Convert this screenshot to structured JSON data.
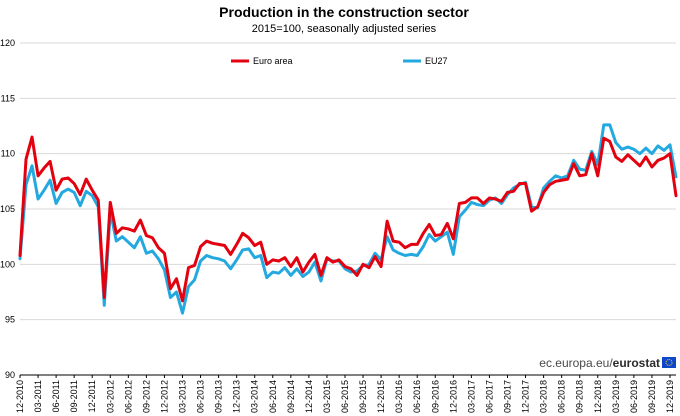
{
  "chart_data": {
    "type": "line",
    "title": "Production in the construction sector",
    "subtitle": "2015=100, seasonally adjusted series",
    "source": {
      "prefix": "ec.europa.eu/",
      "brand": "eurostat"
    },
    "ylim": [
      90,
      120
    ],
    "yticks": [
      90,
      95,
      100,
      105,
      110,
      115,
      120
    ],
    "xlabels": [
      "12-2010",
      "03-2011",
      "06-2011",
      "09-2011",
      "12-2011",
      "03-2012",
      "06-2012",
      "09-2012",
      "12-2012",
      "03-2013",
      "06-2013",
      "09-2013",
      "12-2013",
      "03-2014",
      "06-2014",
      "09-2014",
      "12-2014",
      "03-2015",
      "06-2015",
      "09-2015",
      "12-2015",
      "03-2016",
      "06-2016",
      "09-2016",
      "12-2016",
      "03-2017",
      "06-2017",
      "09-2017",
      "12-2017",
      "03-2018",
      "06-2018",
      "09-2018",
      "12-2018",
      "03-2019",
      "06-2019",
      "09-2019",
      "12-2019"
    ],
    "grid": true,
    "legend": "top",
    "series": [
      {
        "name": "Euro area",
        "color": "#e3000f",
        "values": [
          100.8,
          109.5,
          111.5,
          108.0,
          108.7,
          109.3,
          106.7,
          107.7,
          107.8,
          107.3,
          106.3,
          107.7,
          106.7,
          105.8,
          97.0,
          105.6,
          102.8,
          103.3,
          103.2,
          103.0,
          104.0,
          102.6,
          102.4,
          101.5,
          101.0,
          97.8,
          98.7,
          96.7,
          99.7,
          99.9,
          101.6,
          102.1,
          101.9,
          101.8,
          101.7,
          100.9,
          101.8,
          102.8,
          102.4,
          101.7,
          102.0,
          100.0,
          100.4,
          100.3,
          100.6,
          99.8,
          100.6,
          99.3,
          100.2,
          100.9,
          99.0,
          100.6,
          100.2,
          100.4,
          99.8,
          99.6,
          99.0,
          100.0,
          99.7,
          100.7,
          99.8,
          103.9,
          102.1,
          102.0,
          101.5,
          101.8,
          101.8,
          102.8,
          103.6,
          102.6,
          102.7,
          103.7,
          102.3,
          105.5,
          105.6,
          106.0,
          106.0,
          105.5,
          106.0,
          105.9,
          105.7,
          106.5,
          106.6,
          107.3,
          107.3,
          104.8,
          105.2,
          106.5,
          107.2,
          107.5,
          107.6,
          107.7,
          109.1,
          108.0,
          108.1,
          110.0,
          108.0,
          111.4,
          111.1,
          109.7,
          109.3,
          109.9,
          109.4,
          108.9,
          109.7,
          108.8,
          109.4,
          109.6,
          110.0,
          106.2
        ]
      },
      {
        "name": "EU27",
        "color": "#23a9e0",
        "values": [
          100.5,
          107.2,
          108.9,
          105.9,
          106.7,
          107.6,
          105.5,
          106.5,
          106.8,
          106.5,
          105.3,
          106.6,
          106.2,
          105.2,
          96.3,
          104.8,
          102.1,
          102.5,
          102.0,
          101.5,
          102.5,
          101.0,
          101.2,
          100.5,
          99.5,
          97.0,
          97.5,
          95.6,
          98.0,
          98.6,
          100.3,
          100.8,
          100.6,
          100.5,
          100.3,
          99.6,
          100.4,
          101.3,
          101.4,
          100.6,
          100.8,
          98.8,
          99.3,
          99.2,
          99.7,
          99.0,
          99.6,
          98.9,
          99.3,
          100.2,
          98.5,
          100.5,
          100.3,
          100.3,
          99.6,
          99.3,
          99.4,
          99.9,
          100.0,
          101.0,
          100.4,
          102.5,
          101.3,
          101.0,
          100.8,
          100.9,
          100.8,
          101.6,
          102.7,
          102.1,
          102.5,
          102.9,
          100.9,
          104.3,
          104.9,
          105.6,
          105.4,
          105.3,
          105.8,
          106.0,
          105.5,
          106.3,
          106.9,
          107.2,
          107.4,
          105.2,
          105.1,
          106.9,
          107.5,
          108.0,
          107.8,
          108.0,
          109.4,
          108.6,
          108.5,
          110.2,
          109.0,
          112.6,
          112.6,
          111.0,
          110.4,
          110.6,
          110.4,
          110.0,
          110.5,
          110.0,
          110.7,
          110.3,
          110.8,
          107.9
        ]
      }
    ]
  }
}
